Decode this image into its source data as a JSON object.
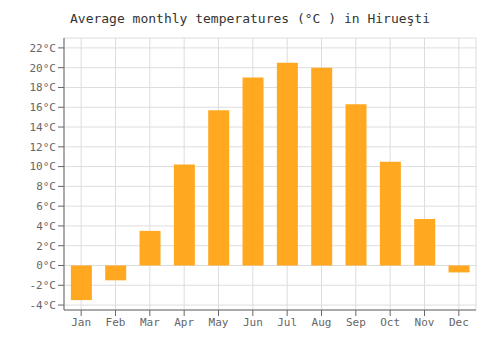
{
  "chart_data": {
    "type": "bar",
    "title": "Average monthly temperatures (°C ) in Hirueşti",
    "categories": [
      "Jan",
      "Feb",
      "Mar",
      "Apr",
      "May",
      "Jun",
      "Jul",
      "Aug",
      "Sep",
      "Oct",
      "Nov",
      "Dec"
    ],
    "values": [
      -3.5,
      -1.5,
      3.5,
      10.2,
      15.7,
      19.0,
      20.5,
      20.0,
      16.3,
      10.5,
      4.7,
      -0.7
    ],
    "color": "#FFA820",
    "ylim": [
      -4.5,
      23
    ],
    "yticks": [
      {
        "value": -4,
        "label": "-4°C"
      },
      {
        "value": -2,
        "label": "-2°C"
      },
      {
        "value": 0,
        "label": "0°C"
      },
      {
        "value": 2,
        "label": "2°C"
      },
      {
        "value": 4,
        "label": "4°C"
      },
      {
        "value": 6,
        "label": "6°C"
      },
      {
        "value": 8,
        "label": "8°C"
      },
      {
        "value": 10,
        "label": "10°C"
      },
      {
        "value": 12,
        "label": "12°C"
      },
      {
        "value": 14,
        "label": "14°C"
      },
      {
        "value": 16,
        "label": "16°C"
      },
      {
        "value": 18,
        "label": "18°C"
      },
      {
        "value": 20,
        "label": "20°C"
      },
      {
        "value": 22,
        "label": "22°C"
      }
    ],
    "grid": true
  }
}
